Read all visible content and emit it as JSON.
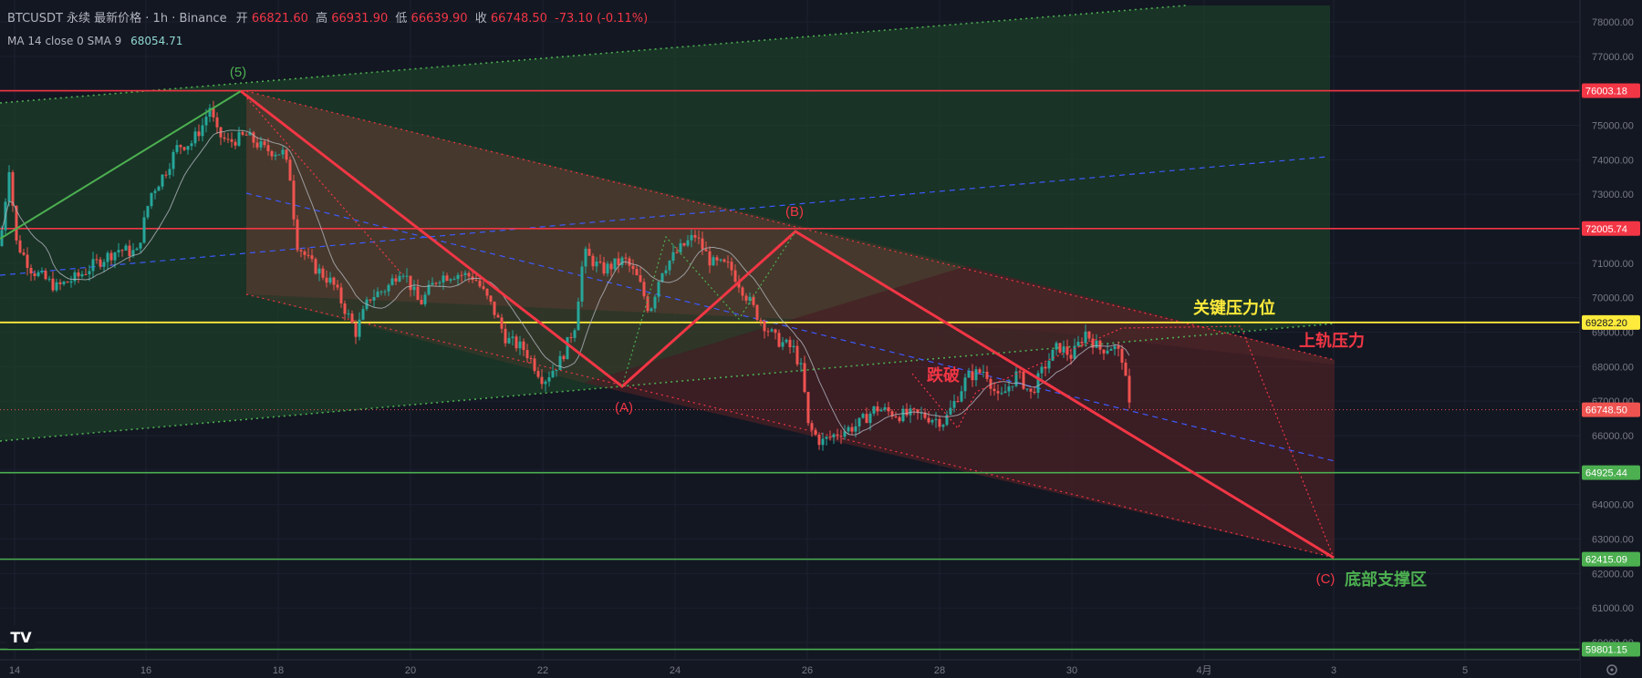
{
  "header": {
    "symbol": "BTCUSDT 永续 最新价格 · 1h · Binance",
    "open_label": "开",
    "open_value": "66821.60",
    "high_label": "高",
    "high_value": "66931.90",
    "low_label": "低",
    "low_value": "66639.90",
    "close_label": "收",
    "close_value": "66748.50",
    "change": "-73.10 (-0.11%)",
    "indicator_label": "MA 14 close 0 SMA 9",
    "indicator_value": "68054.71"
  },
  "colors": {
    "background": "#131722",
    "up": "#26a69a",
    "down": "#ef5350",
    "resistance_line": "#f23645",
    "key_level": "#ffeb3b",
    "support_line": "#4caf50",
    "trend_line": "#f23645",
    "ma_line": "#b2b5be",
    "channel_green_fill": "#1f4a2a",
    "channel_brown_fill": "#5a3b2f",
    "channel_red_fill": "#4a2026",
    "mid_dashed": "#3d5afe",
    "label_green": "#4caf50",
    "label_yellow": "#ffeb3b",
    "label_red": "#f23645"
  },
  "chart_data": {
    "type": "candlestick",
    "timeframe": "1h",
    "ylim": [
      59500,
      78400
    ],
    "price_axis_ticks": [
      78000,
      77000,
      76000,
      75000,
      74000,
      73000,
      72000,
      71000,
      70000,
      69000,
      68000,
      67000,
      66000,
      65000,
      64000,
      63000,
      62000,
      61000,
      60000
    ],
    "price_axis_tick_labels": [
      "78000.00",
      "77000.00",
      "76000.00",
      "75000.00",
      "74000.00",
      "73000.00",
      "72000.00",
      "71000.00",
      "70000.00",
      "69000.00",
      "68000.00",
      "67000.00",
      "66000.00",
      "65000.00",
      "64000.00",
      "63000.00",
      "62000.00",
      "61000.00",
      "60000.00"
    ],
    "date_axis_labels": [
      "14",
      "16",
      "18",
      "20",
      "22",
      "24",
      "26",
      "28",
      "30",
      "4月",
      "3",
      "5"
    ],
    "horizontal_levels": [
      {
        "price": 76003.18,
        "label": "76003.18",
        "style": "resistance"
      },
      {
        "price": 72005.74,
        "label": "72005.74",
        "style": "resistance"
      },
      {
        "price": 69282.2,
        "label": "69282.20",
        "style": "key"
      },
      {
        "price": 66748.5,
        "label": "66748.50",
        "style": "last"
      },
      {
        "price": 64925.44,
        "label": "64925.44",
        "style": "support"
      },
      {
        "price": 62415.09,
        "label": "62415.09",
        "style": "support"
      },
      {
        "price": 59801.15,
        "label": "59801.15",
        "style": "support"
      }
    ],
    "wave_points": [
      {
        "label": "(5)",
        "price": 76003.18
      },
      {
        "label": "(A)",
        "price": 67400
      },
      {
        "label": "(B)",
        "price": 72005.74
      },
      {
        "label": "(C)",
        "price": 62415.09
      }
    ],
    "annotations": [
      {
        "text": "关键压力位",
        "color": "yellow"
      },
      {
        "text": "上轨压力",
        "color": "red"
      },
      {
        "text": "跌破",
        "color": "red"
      },
      {
        "text": "底部支撑区",
        "color": "green"
      }
    ],
    "ohlc_last": {
      "open": 66821.6,
      "high": 66931.9,
      "low": 66639.9,
      "close": 66748.5
    },
    "anchors": [
      {
        "x": 0,
        "p": 71500
      },
      {
        "x": 10,
        "p": 73800
      },
      {
        "x": 18,
        "p": 71600
      },
      {
        "x": 35,
        "p": 70800
      },
      {
        "x": 62,
        "p": 70300
      },
      {
        "x": 85,
        "p": 70600
      },
      {
        "x": 105,
        "p": 71000
      },
      {
        "x": 130,
        "p": 71400
      },
      {
        "x": 150,
        "p": 71300
      },
      {
        "x": 165,
        "p": 73000
      },
      {
        "x": 180,
        "p": 73600
      },
      {
        "x": 195,
        "p": 74400
      },
      {
        "x": 210,
        "p": 74500
      },
      {
        "x": 222,
        "p": 75000
      },
      {
        "x": 231,
        "p": 75600
      },
      {
        "x": 236,
        "p": 74800
      },
      {
        "x": 250,
        "p": 74500
      },
      {
        "x": 270,
        "p": 74700
      },
      {
        "x": 290,
        "p": 74300
      },
      {
        "x": 310,
        "p": 74200
      },
      {
        "x": 318,
        "p": 73500
      },
      {
        "x": 325,
        "p": 71600
      },
      {
        "x": 340,
        "p": 71000
      },
      {
        "x": 365,
        "p": 70400
      },
      {
        "x": 390,
        "p": 69000
      },
      {
        "x": 405,
        "p": 70000
      },
      {
        "x": 425,
        "p": 70300
      },
      {
        "x": 440,
        "p": 70900
      },
      {
        "x": 460,
        "p": 69800
      },
      {
        "x": 480,
        "p": 70600
      },
      {
        "x": 500,
        "p": 70700
      },
      {
        "x": 520,
        "p": 70600
      },
      {
        "x": 540,
        "p": 69700
      },
      {
        "x": 555,
        "p": 68800
      },
      {
        "x": 575,
        "p": 68500
      },
      {
        "x": 596,
        "p": 67600
      },
      {
        "x": 615,
        "p": 68200
      },
      {
        "x": 630,
        "p": 69200
      },
      {
        "x": 640,
        "p": 71300
      },
      {
        "x": 660,
        "p": 70800
      },
      {
        "x": 685,
        "p": 71100
      },
      {
        "x": 700,
        "p": 70500
      },
      {
        "x": 712,
        "p": 69600
      },
      {
        "x": 725,
        "p": 70800
      },
      {
        "x": 745,
        "p": 71400
      },
      {
        "x": 762,
        "p": 71800
      },
      {
        "x": 780,
        "p": 71000
      },
      {
        "x": 800,
        "p": 70900
      },
      {
        "x": 815,
        "p": 70200
      },
      {
        "x": 830,
        "p": 69500
      },
      {
        "x": 850,
        "p": 68800
      },
      {
        "x": 870,
        "p": 68500
      },
      {
        "x": 880,
        "p": 67800
      },
      {
        "x": 885,
        "p": 66300
      },
      {
        "x": 900,
        "p": 65800
      },
      {
        "x": 920,
        "p": 66100
      },
      {
        "x": 940,
        "p": 66300
      },
      {
        "x": 960,
        "p": 66800
      },
      {
        "x": 985,
        "p": 66600
      },
      {
        "x": 1010,
        "p": 66600
      },
      {
        "x": 1035,
        "p": 66400
      },
      {
        "x": 1045,
        "p": 66900
      },
      {
        "x": 1060,
        "p": 67700
      },
      {
        "x": 1080,
        "p": 67900
      },
      {
        "x": 1095,
        "p": 67000
      },
      {
        "x": 1115,
        "p": 67800
      },
      {
        "x": 1130,
        "p": 67200
      },
      {
        "x": 1145,
        "p": 68000
      },
      {
        "x": 1160,
        "p": 68600
      },
      {
        "x": 1175,
        "p": 68300
      },
      {
        "x": 1190,
        "p": 69000
      },
      {
        "x": 1205,
        "p": 68500
      },
      {
        "x": 1220,
        "p": 68600
      },
      {
        "x": 1232,
        "p": 68200
      },
      {
        "x": 1236,
        "p": 66900
      },
      {
        "x": 1240,
        "p": 66748.5
      }
    ]
  }
}
